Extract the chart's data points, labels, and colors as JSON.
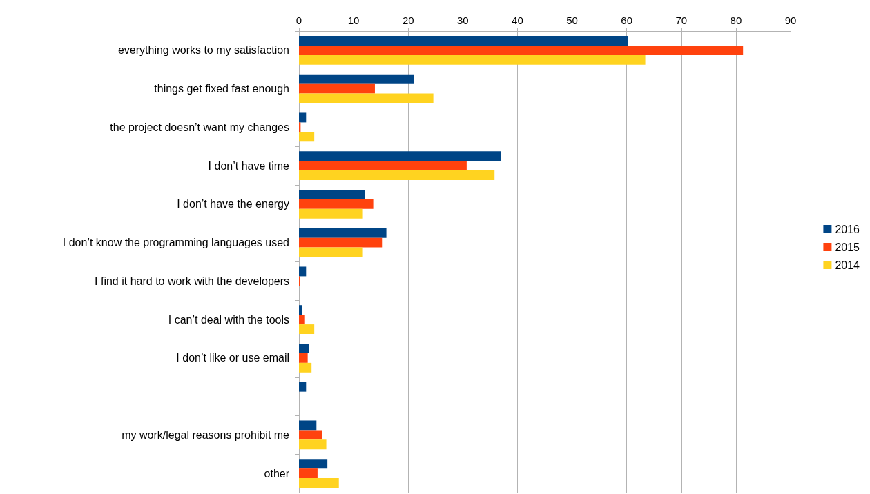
{
  "chart_data": {
    "type": "bar",
    "orientation": "horizontal",
    "categories": [
      "everything works to my satisfaction",
      "things get fixed fast enough",
      "the project doesn’t want my changes",
      "I don’t have time",
      "I don’t have the energy",
      "I don’t know the programming languages used",
      "I find it hard to work with the developers",
      "I can’t deal with the tools",
      "I don’t like or use email",
      null,
      "my work/legal reasons prohibit me",
      "other"
    ],
    "series": [
      {
        "name": "2016",
        "color": "#004586",
        "values": [
          60.2,
          21.1,
          1.3,
          37.0,
          12.1,
          16.0,
          1.3,
          0.6,
          1.9,
          1.3,
          3.2,
          5.2
        ]
      },
      {
        "name": "2015",
        "color": "#ff420e",
        "values": [
          81.3,
          13.9,
          0.3,
          30.7,
          13.6,
          15.2,
          0.2,
          1.1,
          1.6,
          null,
          4.2,
          3.4
        ]
      },
      {
        "name": "2014",
        "color": "#ffd320",
        "values": [
          63.4,
          24.6,
          2.8,
          35.8,
          11.7,
          11.7,
          null,
          2.8,
          2.3,
          null,
          5.0,
          7.3
        ]
      }
    ],
    "xlim": [
      0,
      90
    ],
    "xticks": [
      0,
      10,
      20,
      30,
      40,
      50,
      60,
      70,
      80,
      90
    ],
    "grid": "x",
    "legend": "right"
  }
}
